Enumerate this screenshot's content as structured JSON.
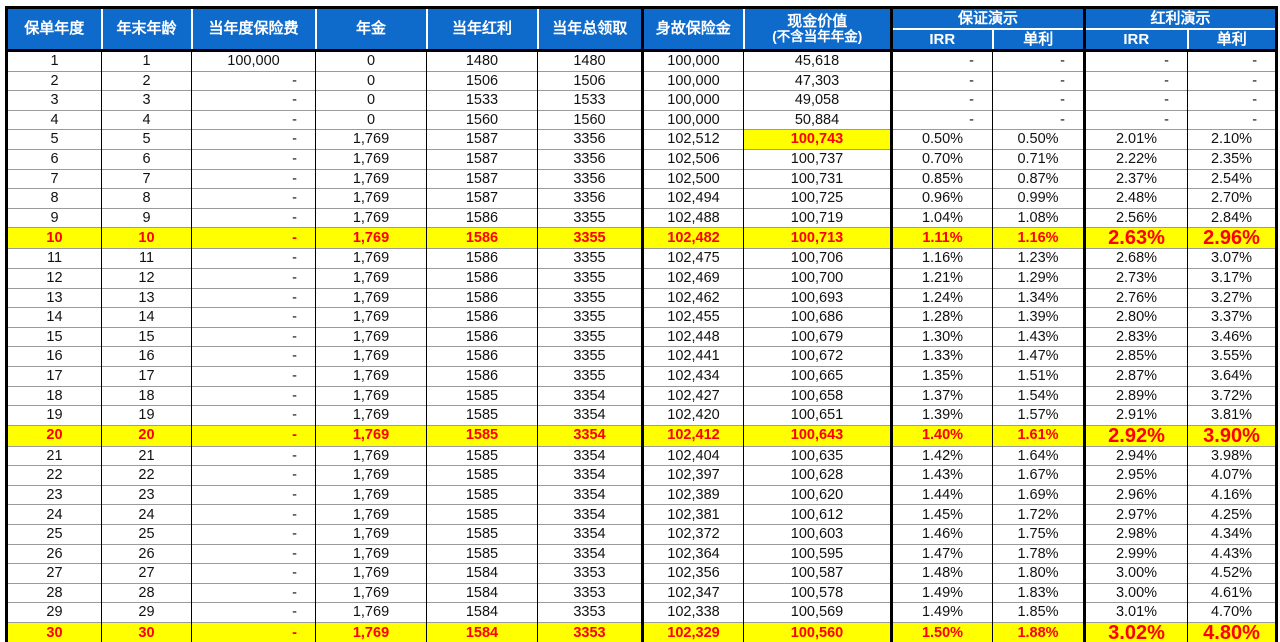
{
  "table": {
    "header": {
      "policy_year": "保单年度",
      "age": "年末年龄",
      "premium": "当年度保险费",
      "annuity": "年金",
      "dividend": "当年红利",
      "total_withdrawal": "当年总领取",
      "death_benefit": "身故保险金",
      "cash_value_line1": "现金价值",
      "cash_value_line2": "(不含当年年金)",
      "guaranteed_group": "保证演示",
      "dividend_group": "红利演示",
      "irr": "IRR",
      "simple_interest": "单利"
    },
    "column_keys": [
      "policy-year",
      "age",
      "premium",
      "annuity",
      "dividend",
      "total-withdrawal",
      "death-benefit",
      "cash-value",
      "guaranteed-irr",
      "guaranteed-simple",
      "dividend-irr",
      "dividend-simple"
    ],
    "rows": [
      [
        "1",
        "1",
        "100,000",
        "0",
        "1480",
        "1480",
        "100,000",
        "45,618",
        "-",
        "-",
        "-",
        "-"
      ],
      [
        "2",
        "2",
        "-",
        "0",
        "1506",
        "1506",
        "100,000",
        "47,303",
        "-",
        "-",
        "-",
        "-"
      ],
      [
        "3",
        "3",
        "-",
        "0",
        "1533",
        "1533",
        "100,000",
        "49,058",
        "-",
        "-",
        "-",
        "-"
      ],
      [
        "4",
        "4",
        "-",
        "0",
        "1560",
        "1560",
        "100,000",
        "50,884",
        "-",
        "-",
        "-",
        "-"
      ],
      [
        "5",
        "5",
        "-",
        "1,769",
        "1587",
        "3356",
        "102,512",
        "100,743",
        "0.50%",
        "0.50%",
        "2.01%",
        "2.10%"
      ],
      [
        "6",
        "6",
        "-",
        "1,769",
        "1587",
        "3356",
        "102,506",
        "100,737",
        "0.70%",
        "0.71%",
        "2.22%",
        "2.35%"
      ],
      [
        "7",
        "7",
        "-",
        "1,769",
        "1587",
        "3356",
        "102,500",
        "100,731",
        "0.85%",
        "0.87%",
        "2.37%",
        "2.54%"
      ],
      [
        "8",
        "8",
        "-",
        "1,769",
        "1587",
        "3356",
        "102,494",
        "100,725",
        "0.96%",
        "0.99%",
        "2.48%",
        "2.70%"
      ],
      [
        "9",
        "9",
        "-",
        "1,769",
        "1586",
        "3355",
        "102,488",
        "100,719",
        "1.04%",
        "1.08%",
        "2.56%",
        "2.84%"
      ],
      [
        "10",
        "10",
        "-",
        "1,769",
        "1586",
        "3355",
        "102,482",
        "100,713",
        "1.11%",
        "1.16%",
        "2.63%",
        "2.96%"
      ],
      [
        "11",
        "11",
        "-",
        "1,769",
        "1586",
        "3355",
        "102,475",
        "100,706",
        "1.16%",
        "1.23%",
        "2.68%",
        "3.07%"
      ],
      [
        "12",
        "12",
        "-",
        "1,769",
        "1586",
        "3355",
        "102,469",
        "100,700",
        "1.21%",
        "1.29%",
        "2.73%",
        "3.17%"
      ],
      [
        "13",
        "13",
        "-",
        "1,769",
        "1586",
        "3355",
        "102,462",
        "100,693",
        "1.24%",
        "1.34%",
        "2.76%",
        "3.27%"
      ],
      [
        "14",
        "14",
        "-",
        "1,769",
        "1586",
        "3355",
        "102,455",
        "100,686",
        "1.28%",
        "1.39%",
        "2.80%",
        "3.37%"
      ],
      [
        "15",
        "15",
        "-",
        "1,769",
        "1586",
        "3355",
        "102,448",
        "100,679",
        "1.30%",
        "1.43%",
        "2.83%",
        "3.46%"
      ],
      [
        "16",
        "16",
        "-",
        "1,769",
        "1586",
        "3355",
        "102,441",
        "100,672",
        "1.33%",
        "1.47%",
        "2.85%",
        "3.55%"
      ],
      [
        "17",
        "17",
        "-",
        "1,769",
        "1586",
        "3355",
        "102,434",
        "100,665",
        "1.35%",
        "1.51%",
        "2.87%",
        "3.64%"
      ],
      [
        "18",
        "18",
        "-",
        "1,769",
        "1585",
        "3354",
        "102,427",
        "100,658",
        "1.37%",
        "1.54%",
        "2.89%",
        "3.72%"
      ],
      [
        "19",
        "19",
        "-",
        "1,769",
        "1585",
        "3354",
        "102,420",
        "100,651",
        "1.39%",
        "1.57%",
        "2.91%",
        "3.81%"
      ],
      [
        "20",
        "20",
        "-",
        "1,769",
        "1585",
        "3354",
        "102,412",
        "100,643",
        "1.40%",
        "1.61%",
        "2.92%",
        "3.90%"
      ],
      [
        "21",
        "21",
        "-",
        "1,769",
        "1585",
        "3354",
        "102,404",
        "100,635",
        "1.42%",
        "1.64%",
        "2.94%",
        "3.98%"
      ],
      [
        "22",
        "22",
        "-",
        "1,769",
        "1585",
        "3354",
        "102,397",
        "100,628",
        "1.43%",
        "1.67%",
        "2.95%",
        "4.07%"
      ],
      [
        "23",
        "23",
        "-",
        "1,769",
        "1585",
        "3354",
        "102,389",
        "100,620",
        "1.44%",
        "1.69%",
        "2.96%",
        "4.16%"
      ],
      [
        "24",
        "24",
        "-",
        "1,769",
        "1585",
        "3354",
        "102,381",
        "100,612",
        "1.45%",
        "1.72%",
        "2.97%",
        "4.25%"
      ],
      [
        "25",
        "25",
        "-",
        "1,769",
        "1585",
        "3354",
        "102,372",
        "100,603",
        "1.46%",
        "1.75%",
        "2.98%",
        "4.34%"
      ],
      [
        "26",
        "26",
        "-",
        "1,769",
        "1585",
        "3354",
        "102,364",
        "100,595",
        "1.47%",
        "1.78%",
        "2.99%",
        "4.43%"
      ],
      [
        "27",
        "27",
        "-",
        "1,769",
        "1584",
        "3353",
        "102,356",
        "100,587",
        "1.48%",
        "1.80%",
        "3.00%",
        "4.52%"
      ],
      [
        "28",
        "28",
        "-",
        "1,769",
        "1584",
        "3353",
        "102,347",
        "100,578",
        "1.49%",
        "1.83%",
        "3.00%",
        "4.61%"
      ],
      [
        "29",
        "29",
        "-",
        "1,769",
        "1584",
        "3353",
        "102,338",
        "100,569",
        "1.49%",
        "1.85%",
        "3.01%",
        "4.70%"
      ],
      [
        "30",
        "30",
        "-",
        "1,769",
        "1584",
        "3353",
        "102,329",
        "100,560",
        "1.50%",
        "1.88%",
        "3.02%",
        "4.80%"
      ]
    ],
    "highlight_rows": [
      10,
      20,
      30
    ],
    "highlight_cells": [
      {
        "row": 5,
        "col": 8
      }
    ],
    "big_font_columns_in_highlight_rows": [
      11,
      12
    ]
  },
  "colors": {
    "header_blue": "#0F6BCB",
    "header_text": "#FFFFFF",
    "highlight_yellow": "#FFFF00",
    "highlight_red": "#FF0000",
    "grid_gray": "#9B9B9B",
    "frame_black": "#000000"
  }
}
